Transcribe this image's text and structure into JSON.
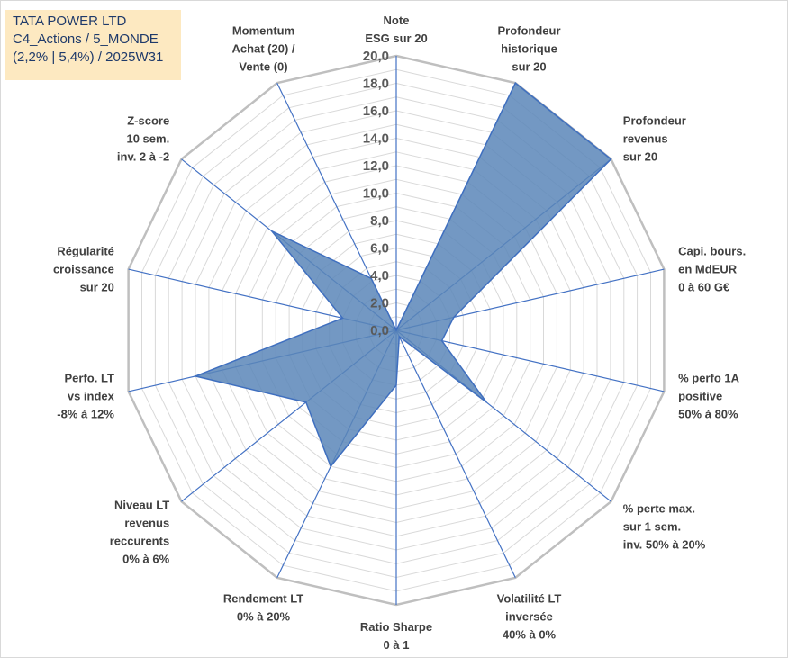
{
  "header": {
    "line1": "TATA POWER LTD",
    "line2": "C4_Actions / 5_MONDE",
    "line3": "(2,2% | 5,4%) / 2025W31"
  },
  "colors": {
    "fill": "#5b86b8",
    "stroke": "#3f6fbf",
    "grid": "#bfbfbf",
    "spoke": "#4472c4",
    "title_bg": "#fde9c1"
  },
  "chart_data": {
    "type": "radar",
    "rmin": 0,
    "rmax": 20,
    "tick_step": 2,
    "tick_labels": [
      "0,0",
      "2,0",
      "4,0",
      "6,0",
      "8,0",
      "10,0",
      "12,0",
      "14,0",
      "16,0",
      "18,0",
      "20,0"
    ],
    "axes": [
      {
        "label": [
          "Note",
          "ESG sur 20"
        ],
        "value": 0
      },
      {
        "label": [
          "Profondeur",
          "historique",
          "sur 20"
        ],
        "value": 20
      },
      {
        "label": [
          "Profondeur",
          "revenus",
          "sur 20"
        ],
        "value": 20
      },
      {
        "label": [
          "Capi. bours.",
          "en MdEUR",
          "0 à 60 G€"
        ],
        "value": 4.3
      },
      {
        "label": [
          "% perfo 1A",
          "positive",
          "50% à 80%"
        ],
        "value": 3.4
      },
      {
        "label": [
          "% perte max.",
          "sur 1 sem.",
          "inv. 50% à 20%"
        ],
        "value": 8.4
      },
      {
        "label": [
          "Volatilité LT",
          "inversée",
          "40% à 0%"
        ],
        "value": 0.5
      },
      {
        "label": [
          "Ratio Sharpe",
          "0 à 1"
        ],
        "value": 4.0
      },
      {
        "label": [
          "Rendement LT",
          "0% à 20%"
        ],
        "value": 11.0
      },
      {
        "label": [
          "Niveau LT",
          "revenus",
          "reccurents",
          "0% à 6%"
        ],
        "value": 8.4
      },
      {
        "label": [
          "Perfo. LT",
          "vs index",
          "-8% à 12%"
        ],
        "value": 15.0
      },
      {
        "label": [
          "Régularité",
          "croissance",
          "sur 20"
        ],
        "value": 4.0
      },
      {
        "label": [
          "Z-score",
          "10 sem.",
          "inv. 2 à -2"
        ],
        "value": 11.6
      },
      {
        "label": [
          "Momentum",
          "Achat (20) /",
          "Vente (0)"
        ],
        "value": 4.2
      }
    ]
  }
}
